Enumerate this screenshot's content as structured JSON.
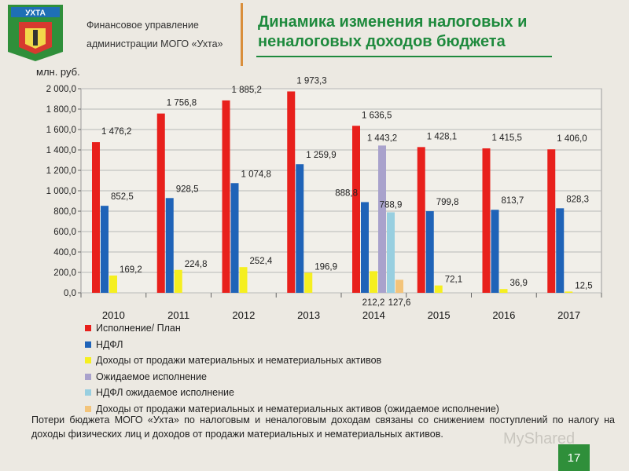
{
  "header": {
    "logo_text": "УХТА",
    "org_line1": "Финансовое управление",
    "org_line2": "администрации МОГО «Ухта»",
    "title_line1": "Динамика изменения налоговых и",
    "title_line2": "неналоговых доходов бюджета"
  },
  "colors": {
    "execution": "#e8201c",
    "ndfl": "#1f63b8",
    "assets": "#f5ef20",
    "expected": "#a9a2cc",
    "ndfl_expected": "#98cfe0",
    "assets_expected": "#f3c47a",
    "title_green": "#1e8a3d",
    "accent_orange": "#d98e3b"
  },
  "chart_data": {
    "type": "bar",
    "ylabel": "млн. руб.",
    "ylim": [
      0,
      2000
    ],
    "yticks": [
      "0,0",
      "200,0",
      "400,0",
      "600,0",
      "800,0",
      "1 000,0",
      "1 200,0",
      "1 400,0",
      "1 600,0",
      "1 800,0",
      "2 000,0"
    ],
    "grid": true,
    "legend_position": "bottom",
    "categories": [
      "2010",
      "2011",
      "2012",
      "2013",
      "2014",
      "2015",
      "2016",
      "2017"
    ],
    "series": [
      {
        "name": "Исполнение/ План",
        "color_key": "execution",
        "values": [
          1476.2,
          1756.8,
          1885.2,
          1973.3,
          1636.5,
          1428.1,
          1415.5,
          1406.0
        ],
        "labels": [
          "1 476,2",
          "1 756,8",
          "1 885,2",
          "1 973,3",
          "1 636,5",
          "1 428,1",
          "1 415,5",
          "1 406,0"
        ]
      },
      {
        "name": "НДФЛ",
        "color_key": "ndfl",
        "values": [
          852.5,
          928.5,
          1074.8,
          1259.9,
          888.8,
          799.8,
          813.7,
          828.3
        ],
        "labels": [
          "852,5",
          "928,5",
          "1 074,8",
          "1 259,9",
          "888,8",
          "799,8",
          "813,7",
          "828,3"
        ]
      },
      {
        "name": "Доходы от продажи материальных и нематериальных активов",
        "color_key": "assets",
        "values": [
          169.2,
          224.8,
          252.4,
          196.9,
          212.2,
          72.1,
          36.9,
          12.5
        ],
        "labels": [
          "169,2",
          "224,8",
          "252,4",
          "196,9",
          "212,2",
          "72,1",
          "36,9",
          "12,5"
        ]
      },
      {
        "name": "Ожидаемое исполнение",
        "color_key": "expected",
        "values": [
          null,
          null,
          null,
          null,
          1443.2,
          null,
          null,
          null
        ],
        "labels": [
          "",
          "",
          "",
          "",
          "1 443,2",
          "",
          "",
          ""
        ]
      },
      {
        "name": "НДФЛ ожидаемое исполнение",
        "color_key": "ndfl_expected",
        "values": [
          null,
          null,
          null,
          null,
          788.9,
          null,
          null,
          null
        ],
        "labels": [
          "",
          "",
          "",
          "",
          "788,9",
          "",
          "",
          ""
        ]
      },
      {
        "name": "Доходы от продажи материальных и нематериальных активов (ожидаемое исполнение)",
        "color_key": "assets_expected",
        "values": [
          null,
          null,
          null,
          null,
          127.6,
          null,
          null,
          null
        ],
        "labels": [
          "",
          "",
          "",
          "",
          "127,6",
          "",
          "",
          ""
        ]
      }
    ]
  },
  "note": "Потери бюджета МОГО «Ухта» по налоговым и неналоговым доходам связаны со снижением поступлений по налогу на доходы физических лиц и доходов от продажи материальных и нематериальных активов.",
  "page_number": "17",
  "watermark": "MyShared"
}
